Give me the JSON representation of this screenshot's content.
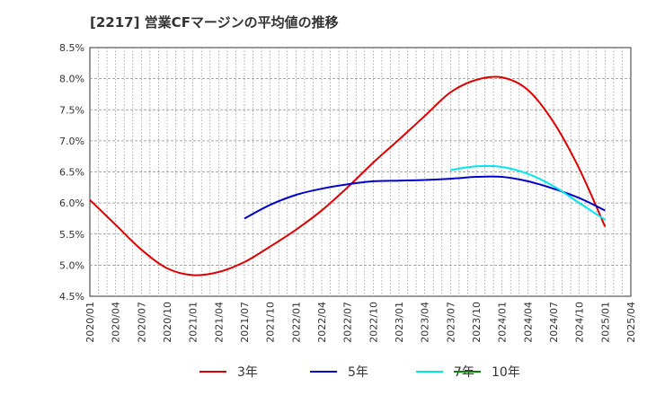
{
  "title": "[2217]  営業CFマージンの平均値の推移",
  "chart_data": {
    "type": "line",
    "title": "[2217]  営業CFマージンの平均値の推移",
    "xlabel": "",
    "ylabel": "",
    "ylim": [
      4.5,
      8.5
    ],
    "y_ticks": [
      "4.5%",
      "5.0%",
      "5.5%",
      "6.0%",
      "6.5%",
      "7.0%",
      "7.5%",
      "8.0%",
      "8.5%"
    ],
    "x_ticks": [
      "2020/01",
      "2020/04",
      "2020/07",
      "2020/10",
      "2021/01",
      "2021/04",
      "2021/07",
      "2021/10",
      "2022/01",
      "2022/04",
      "2022/07",
      "2022/10",
      "2023/01",
      "2023/04",
      "2023/07",
      "2023/10",
      "2024/01",
      "2024/04",
      "2024/07",
      "2024/10",
      "2025/01",
      "2025/04"
    ],
    "grid": true,
    "legend_position": "bottom",
    "colors": {
      "3年": "#dd0000",
      "5年": "#0000cc",
      "7年": "#00e5ee",
      "10年": "#008800"
    },
    "series": [
      {
        "name": "3年",
        "color": "#dd0000",
        "x": [
          "2020/01",
          "2020/04",
          "2020/07",
          "2020/10",
          "2021/01",
          "2021/04",
          "2021/07",
          "2021/10",
          "2022/01",
          "2022/04",
          "2022/07",
          "2022/10",
          "2023/01",
          "2023/04",
          "2023/07",
          "2023/10",
          "2024/01",
          "2024/04",
          "2024/07",
          "2024/10",
          "2025/01"
        ],
        "values": [
          6.05,
          5.65,
          5.25,
          4.95,
          4.84,
          4.89,
          5.05,
          5.3,
          5.57,
          5.88,
          6.25,
          6.65,
          7.02,
          7.4,
          7.78,
          7.98,
          8.02,
          7.82,
          7.3,
          6.55,
          5.62
        ]
      },
      {
        "name": "5年",
        "color": "#0000cc",
        "x": [
          "2021/07",
          "2021/10",
          "2022/01",
          "2022/04",
          "2022/07",
          "2022/10",
          "2023/01",
          "2023/04",
          "2023/07",
          "2023/10",
          "2024/01",
          "2024/04",
          "2024/07",
          "2024/10",
          "2025/01"
        ],
        "values": [
          5.75,
          5.97,
          6.13,
          6.23,
          6.3,
          6.35,
          6.36,
          6.37,
          6.39,
          6.42,
          6.42,
          6.35,
          6.23,
          6.08,
          5.88
        ]
      },
      {
        "name": "7年",
        "color": "#00e5ee",
        "x": [
          "2023/07",
          "2023/10",
          "2024/01",
          "2024/04",
          "2024/07",
          "2024/10",
          "2025/01"
        ],
        "values": [
          6.53,
          6.59,
          6.58,
          6.47,
          6.27,
          6.0,
          5.73
        ]
      },
      {
        "name": "10年",
        "color": "#008800",
        "x": [],
        "values": []
      }
    ]
  }
}
